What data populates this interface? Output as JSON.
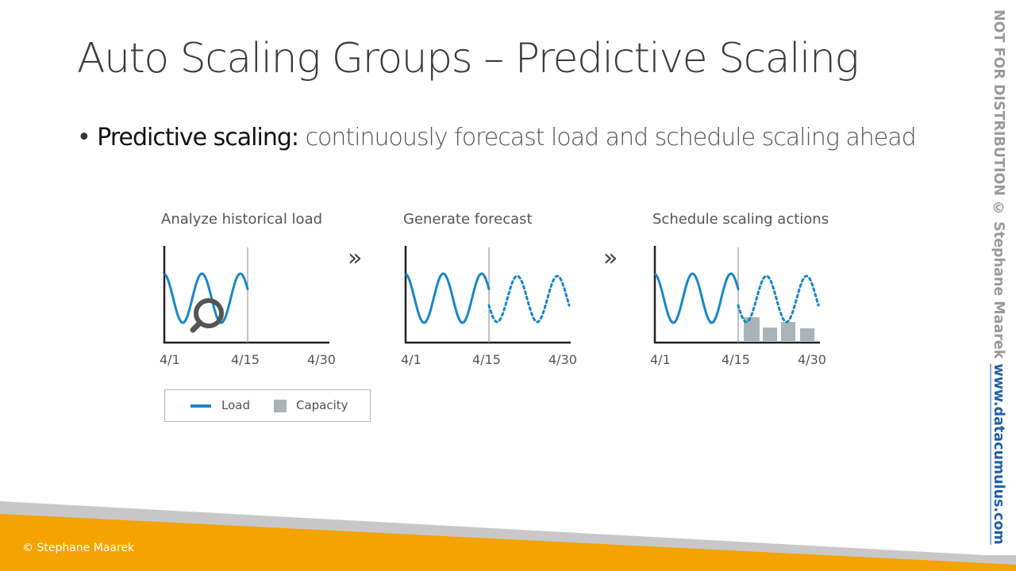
{
  "slide": {
    "title": "Auto Scaling Groups – Predictive Scaling",
    "bullet": {
      "marker": "•",
      "term": "Predictive scaling:",
      "description": "continuously forecast load and schedule scaling ahead"
    }
  },
  "diagram": {
    "stages": [
      {
        "label": "Analyze historical load"
      },
      {
        "label": "Generate forecast"
      },
      {
        "label": "Schedule scaling actions"
      }
    ],
    "separator": "»",
    "ticks": [
      "4/1",
      "4/15",
      "4/30"
    ],
    "legend": {
      "load": "Load",
      "capacity": "Capacity"
    },
    "colors": {
      "load": "#1a86c6",
      "capacity": "#aab4b8",
      "axis": "#222222",
      "divider": "#999999",
      "magnifier": "#555555"
    }
  },
  "side_note": {
    "text": "NOT FOR DISTRIBUTION © Stephane Maarek ",
    "link": "www.datacumulus.com"
  },
  "footer": {
    "copyright": "© Stephane Maarek",
    "colors": {
      "band": "#f5a300",
      "shadow": "#c8c8c8"
    }
  }
}
